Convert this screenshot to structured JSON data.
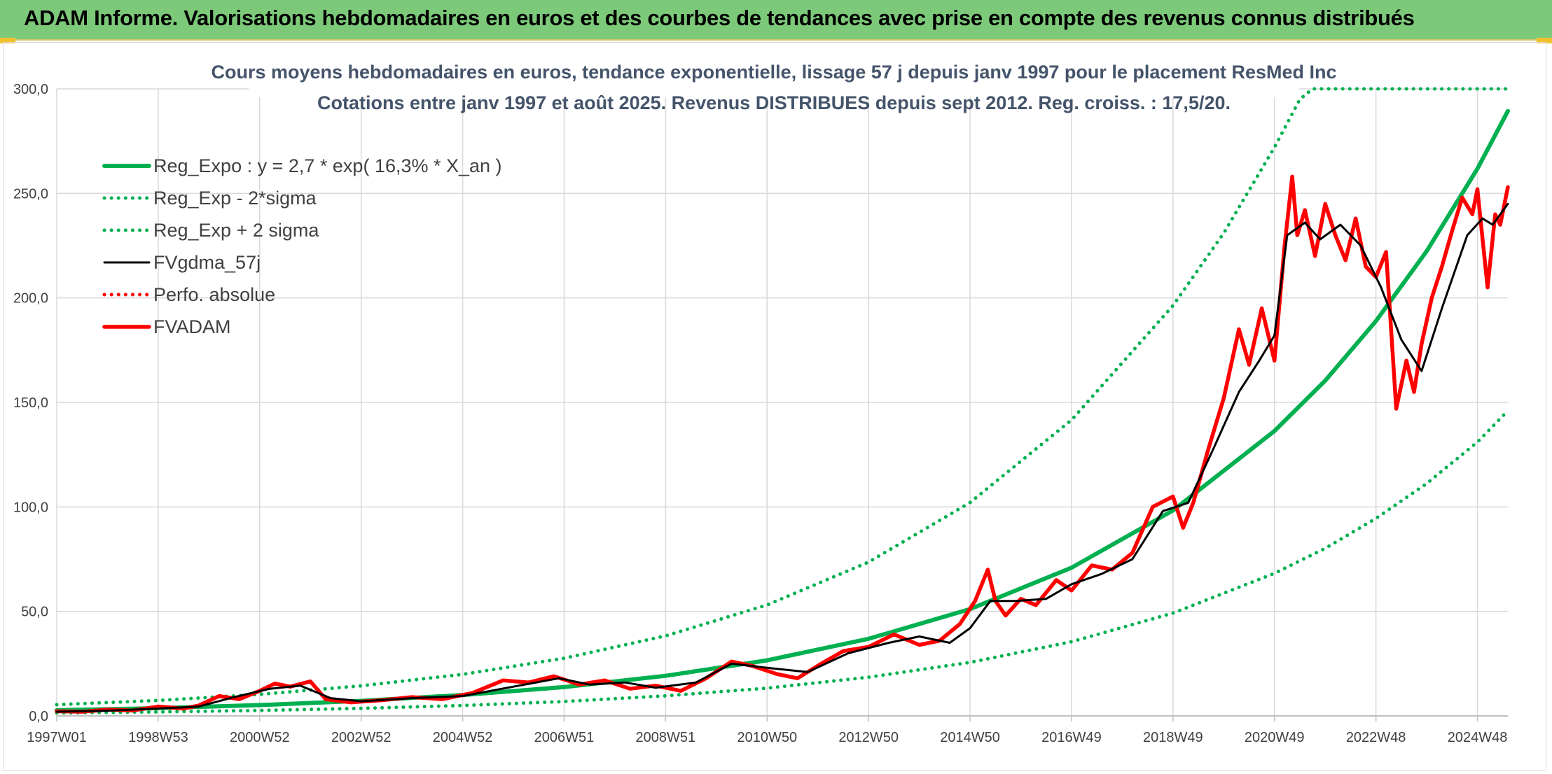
{
  "header": {
    "title": "ADAM Informe. Valorisations hebdomadaires en euros et des courbes de tendances avec prise en compte des revenus connus distribués"
  },
  "colors": {
    "header_bg": "#7dc97a",
    "green": "#00b050",
    "red": "#ff0000",
    "black": "#000000",
    "title": "#44546a"
  },
  "chart_data": {
    "type": "line",
    "title": "Cours moyens hebdomadaires en euros, tendance exponentielle, lissage 57 j depuis janv 1997 pour le placement ResMed Inc",
    "subtitle": "Cotations entre janv 1997 et août 2025. Revenus DISTRIBUES depuis sept 2012. Reg. croiss. : 17,5/20.",
    "xlabel": "",
    "ylabel": "",
    "ylim": [
      0,
      300
    ],
    "xlim": [
      1997.0,
      2025.6
    ],
    "y_ticks": [
      "0,0",
      "50,0",
      "100,0",
      "150,0",
      "200,0",
      "250,0",
      "300,0"
    ],
    "x_ticks": [
      {
        "label": "1997W01",
        "x": 1997.0
      },
      {
        "label": "1998W53",
        "x": 1999.0
      },
      {
        "label": "2000W52",
        "x": 2001.0
      },
      {
        "label": "2002W52",
        "x": 2003.0
      },
      {
        "label": "2004W52",
        "x": 2005.0
      },
      {
        "label": "2006W51",
        "x": 2007.0
      },
      {
        "label": "2008W51",
        "x": 2009.0
      },
      {
        "label": "2010W50",
        "x": 2011.0
      },
      {
        "label": "2012W50",
        "x": 2013.0
      },
      {
        "label": "2014W50",
        "x": 2015.0
      },
      {
        "label": "2016W49",
        "x": 2017.0
      },
      {
        "label": "2018W49",
        "x": 2019.0
      },
      {
        "label": "2020W49",
        "x": 2021.0
      },
      {
        "label": "2022W48",
        "x": 2023.0
      },
      {
        "label": "2024W48",
        "x": 2025.0
      }
    ],
    "grid": true,
    "legend_position": "top-left",
    "series": [
      {
        "name": "Reg_Expo : y = 2,7 * exp( 16,3% *  X_an )",
        "color": "#00b050",
        "style": "solid",
        "x": [
          1997.0,
          1999.0,
          2001.0,
          2003.0,
          2005.0,
          2007.0,
          2009.0,
          2011.0,
          2013.0,
          2015.0,
          2017.0,
          2019.0,
          2021.0,
          2022.0,
          2023.0,
          2024.0,
          2025.0,
          2025.6
        ],
        "values": [
          2.7,
          3.7,
          5.2,
          7.2,
          10.0,
          13.8,
          19.2,
          26.6,
          36.9,
          51.1,
          70.9,
          98.3,
          136.3,
          160.4,
          188.9,
          222.4,
          261.8,
          289.4
        ]
      },
      {
        "name": "Reg_Exp - 2*sigma",
        "color": "#00b050",
        "style": "dotted",
        "x": [
          1997.0,
          1999.0,
          2001.0,
          2003.0,
          2005.0,
          2007.0,
          2009.0,
          2011.0,
          2013.0,
          2015.0,
          2017.0,
          2019.0,
          2021.0,
          2022.0,
          2023.0,
          2024.0,
          2025.0,
          2025.6
        ],
        "values": [
          1.4,
          1.9,
          2.6,
          3.6,
          5.0,
          6.9,
          9.6,
          13.3,
          18.5,
          25.6,
          35.5,
          49.2,
          68.2,
          80.2,
          94.5,
          111.2,
          131.0,
          146.0
        ]
      },
      {
        "name": "Reg_Exp + 2 sigma",
        "color": "#00b050",
        "style": "dotted",
        "x": [
          1997.0,
          1999.0,
          2001.0,
          2003.0,
          2005.0,
          2007.0,
          2009.0,
          2011.0,
          2013.0,
          2015.0,
          2017.0,
          2019.0,
          2020.0,
          2021.0,
          2021.5,
          2021.75,
          2025.6
        ],
        "values": [
          5.4,
          7.4,
          10.3,
          14.4,
          19.9,
          27.6,
          38.3,
          53.1,
          73.6,
          102.1,
          141.6,
          196.3,
          231.0,
          272.0,
          295.0,
          300.0,
          300.0
        ]
      },
      {
        "name": "FVgdma_57j",
        "color": "#000000",
        "style": "solid",
        "x": [
          1997.0,
          1998.0,
          1999.0,
          1999.8,
          2000.5,
          2001.2,
          2001.8,
          2002.4,
          2003.0,
          2004.0,
          2005.0,
          2006.0,
          2006.9,
          2007.5,
          2008.2,
          2008.8,
          2009.6,
          2010.3,
          2011.0,
          2011.8,
          2012.6,
          2013.4,
          2014.0,
          2014.6,
          2015.0,
          2015.4,
          2015.9,
          2016.5,
          2017.0,
          2017.6,
          2018.2,
          2018.8,
          2019.3,
          2019.8,
          2020.3,
          2020.7,
          2021.0,
          2021.25,
          2021.6,
          2021.9,
          2022.3,
          2022.7,
          2023.1,
          2023.5,
          2023.9,
          2024.3,
          2024.8,
          2025.1,
          2025.3,
          2025.6
        ],
        "values": [
          2.0,
          2.5,
          3.5,
          4.5,
          9.0,
          13.0,
          14.5,
          8.5,
          7.0,
          8.5,
          9.5,
          14.0,
          18.0,
          15.0,
          16.0,
          13.5,
          16.0,
          25.0,
          23.0,
          21.0,
          30.0,
          35.0,
          38.0,
          35.0,
          42.0,
          55.0,
          55.0,
          56.0,
          63.0,
          68.0,
          75.0,
          98.0,
          102.0,
          128.0,
          155.0,
          170.0,
          182.0,
          230.0,
          236.0,
          228.0,
          235.0,
          225.0,
          205.0,
          180.0,
          165.0,
          195.0,
          230.0,
          238.0,
          235.0,
          245.0
        ]
      },
      {
        "name": "Perfo. absolue",
        "color": "#ff0000",
        "style": "dotted",
        "x": [],
        "values": []
      },
      {
        "name": "FVADAM",
        "color": "#ff0000",
        "style": "solid",
        "x": [
          1997.0,
          1997.5,
          1998.0,
          1998.5,
          1999.0,
          1999.5,
          1999.8,
          2000.2,
          2000.6,
          2001.0,
          2001.3,
          2001.6,
          2002.0,
          2002.3,
          2002.8,
          2003.4,
          2004.0,
          2004.6,
          2005.2,
          2005.8,
          2006.3,
          2006.8,
          2007.3,
          2007.8,
          2008.3,
          2008.8,
          2009.3,
          2009.8,
          2010.3,
          2010.7,
          2011.2,
          2011.6,
          2012.0,
          2012.5,
          2013.0,
          2013.5,
          2014.0,
          2014.4,
          2014.8,
          2015.1,
          2015.35,
          2015.5,
          2015.7,
          2016.0,
          2016.3,
          2016.7,
          2017.0,
          2017.4,
          2017.8,
          2018.2,
          2018.6,
          2019.0,
          2019.2,
          2019.4,
          2019.7,
          2020.0,
          2020.3,
          2020.5,
          2020.75,
          2021.0,
          2021.2,
          2021.35,
          2021.45,
          2021.6,
          2021.8,
          2022.0,
          2022.2,
          2022.4,
          2022.6,
          2022.8,
          2023.0,
          2023.2,
          2023.4,
          2023.6,
          2023.75,
          2023.9,
          2024.1,
          2024.3,
          2024.5,
          2024.7,
          2024.9,
          2025.0,
          2025.2,
          2025.35,
          2025.45,
          2025.6
        ],
        "values": [
          2.2,
          2.0,
          3.0,
          2.6,
          4.5,
          3.5,
          5.0,
          9.5,
          8.0,
          12.0,
          15.5,
          14.0,
          16.5,
          8.0,
          6.5,
          7.5,
          9.0,
          8.0,
          11.0,
          17.0,
          16.0,
          19.0,
          15.0,
          17.0,
          13.0,
          14.5,
          12.0,
          18.0,
          26.0,
          24.0,
          20.0,
          18.0,
          24.0,
          31.0,
          33.0,
          39.0,
          34.0,
          36.0,
          44.0,
          55.0,
          70.0,
          55.0,
          48.0,
          56.0,
          53.0,
          65.0,
          60.0,
          72.0,
          70.0,
          78.0,
          100.0,
          105.0,
          90.0,
          102.0,
          128.0,
          152.0,
          185.0,
          168.0,
          195.0,
          170.0,
          225.0,
          258.0,
          230.0,
          242.0,
          220.0,
          245.0,
          230.0,
          218.0,
          238.0,
          215.0,
          210.0,
          222.0,
          147.0,
          170.0,
          155.0,
          178.0,
          200.0,
          215.0,
          232.0,
          248.0,
          240.0,
          252.0,
          205.0,
          240.0,
          235.0,
          253.0
        ]
      }
    ]
  }
}
